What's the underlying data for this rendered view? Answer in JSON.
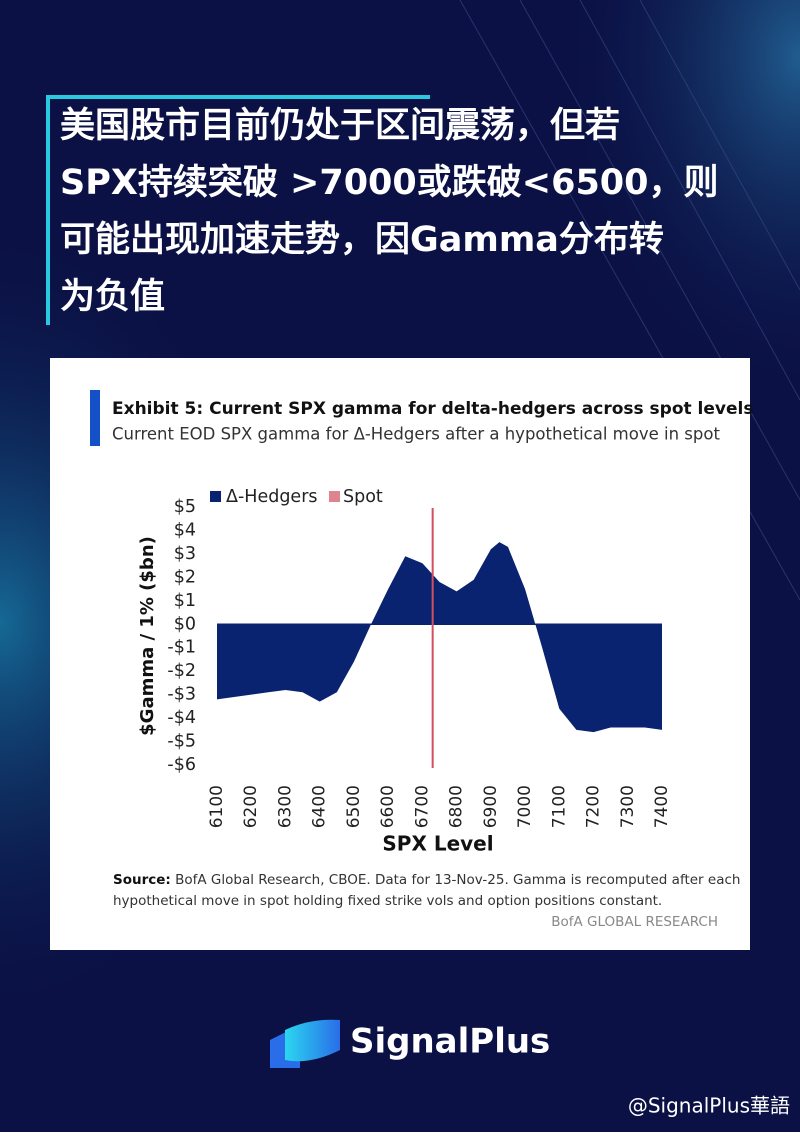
{
  "headline": [
    "美国股市目前仍处于区间震荡，但若",
    "SPX持续突破 >7000或跌破<6500，则",
    "可能出现加速走势，因Gamma分布转",
    "为负值"
  ],
  "chart_data": {
    "type": "area",
    "title": "Exhibit 5: Current SPX gamma for delta-hedgers across spot levels",
    "subtitle": "Current EOD SPX gamma for Δ-Hedgers after a hypothetical move in spot",
    "x": [
      6100,
      6150,
      6200,
      6250,
      6300,
      6350,
      6400,
      6450,
      6500,
      6550,
      6600,
      6650,
      6700,
      6750,
      6800,
      6850,
      6900,
      6925,
      6950,
      7000,
      7050,
      7100,
      7150,
      7200,
      7250,
      7300,
      7350,
      7400
    ],
    "series": [
      {
        "name": "Δ-Hedgers",
        "color": "#0a2370",
        "values": [
          -3.2,
          -3.1,
          -3.0,
          -2.9,
          -2.8,
          -2.9,
          -3.3,
          -2.9,
          -1.6,
          0.0,
          1.5,
          2.9,
          2.6,
          1.8,
          1.4,
          1.9,
          3.2,
          3.5,
          3.3,
          1.5,
          -1.0,
          -3.6,
          -4.5,
          -4.6,
          -4.4,
          -4.4,
          -4.4,
          -4.5
        ]
      }
    ],
    "spot": {
      "name": "Spot",
      "value": 6730,
      "color": "#d0505e"
    },
    "xlim": [
      6100,
      7400
    ],
    "xticks": [
      6100,
      6200,
      6300,
      6400,
      6500,
      6600,
      6700,
      6800,
      6900,
      7000,
      7100,
      7200,
      7300,
      7400
    ],
    "ylim": [
      -6,
      5
    ],
    "yticks": [
      {
        "value": -6,
        "label": "-$6"
      },
      {
        "value": -5,
        "label": "-$5"
      },
      {
        "value": -4,
        "label": "-$4"
      },
      {
        "value": -3,
        "label": "-$3"
      },
      {
        "value": -2,
        "label": "-$2"
      },
      {
        "value": -1,
        "label": "-$1"
      },
      {
        "value": 0,
        "label": "$0"
      },
      {
        "value": 1,
        "label": "$1"
      },
      {
        "value": 2,
        "label": "$2"
      },
      {
        "value": 3,
        "label": "$3"
      },
      {
        "value": 4,
        "label": "$4"
      },
      {
        "value": 5,
        "label": "$5"
      }
    ],
    "x_label": "SPX Level",
    "y_label": "$Gamma / 1% ($bn)",
    "source_label": "Source:",
    "source_text": [
      "BofA Global Research, CBOE. Data for 13-Nov-25. Gamma is recomputed after each",
      "hypothetical move in spot holding fixed strike vols and option positions constant."
    ],
    "credit": "BofA GLOBAL RESEARCH"
  },
  "brand": "SignalPlus",
  "watermark": "@SignalPlus華語"
}
